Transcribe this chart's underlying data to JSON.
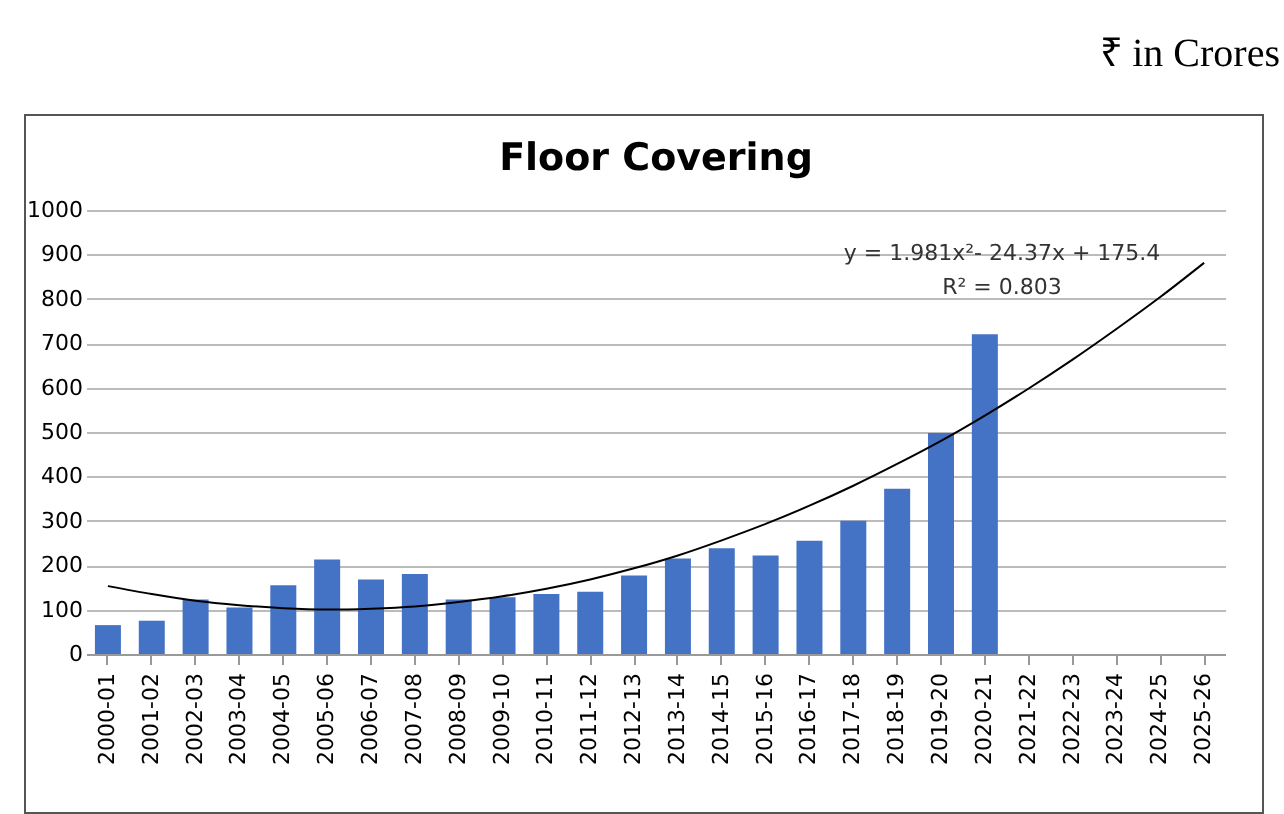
{
  "chart_data": {
    "type": "bar",
    "title": "Floor Covering",
    "categories": [
      "2000-01",
      "2001-02",
      "2002-03",
      "2003-04",
      "2004-05",
      "2005-06",
      "2006-07",
      "2007-08",
      "2008-09",
      "2009-10",
      "2010-11",
      "2011-12",
      "2012-13",
      "2013-14",
      "2014-15",
      "2015-16",
      "2016-17",
      "2017-18",
      "2018-19",
      "2019-20",
      "2020-21",
      "2021-22",
      "2022-23",
      "2023-24",
      "2024-25",
      "2025-26"
    ],
    "series": [
      {
        "color": "#4472c4",
        "values": [
          65,
          75,
          123,
          105,
          155,
          213,
          168,
          180,
          123,
          128,
          135,
          140,
          177,
          215,
          238,
          222,
          255,
          300,
          372,
          498,
          720,
          null,
          null,
          null,
          null,
          null
        ]
      },
      {
        "type": "line",
        "color": "#000000",
        "values": [
          153,
          135,
          120,
          110,
          103,
          100,
          102,
          107,
          117,
          130,
          147,
          168,
          193,
          222,
          256,
          293,
          334,
          379,
          428,
          480,
          537,
          598,
          663,
          732,
          804,
          881
        ]
      }
    ],
    "ylim": [
      0,
      1000
    ],
    "yticks": [
      0,
      100,
      200,
      300,
      400,
      500,
      600,
      700,
      800,
      900,
      1000
    ],
    "grid": "y",
    "legend": false,
    "annotations": [
      "₹ in Crores",
      "y = 1.981x²- 24.37x + 175.4",
      "R² = 0.803"
    ]
  }
}
